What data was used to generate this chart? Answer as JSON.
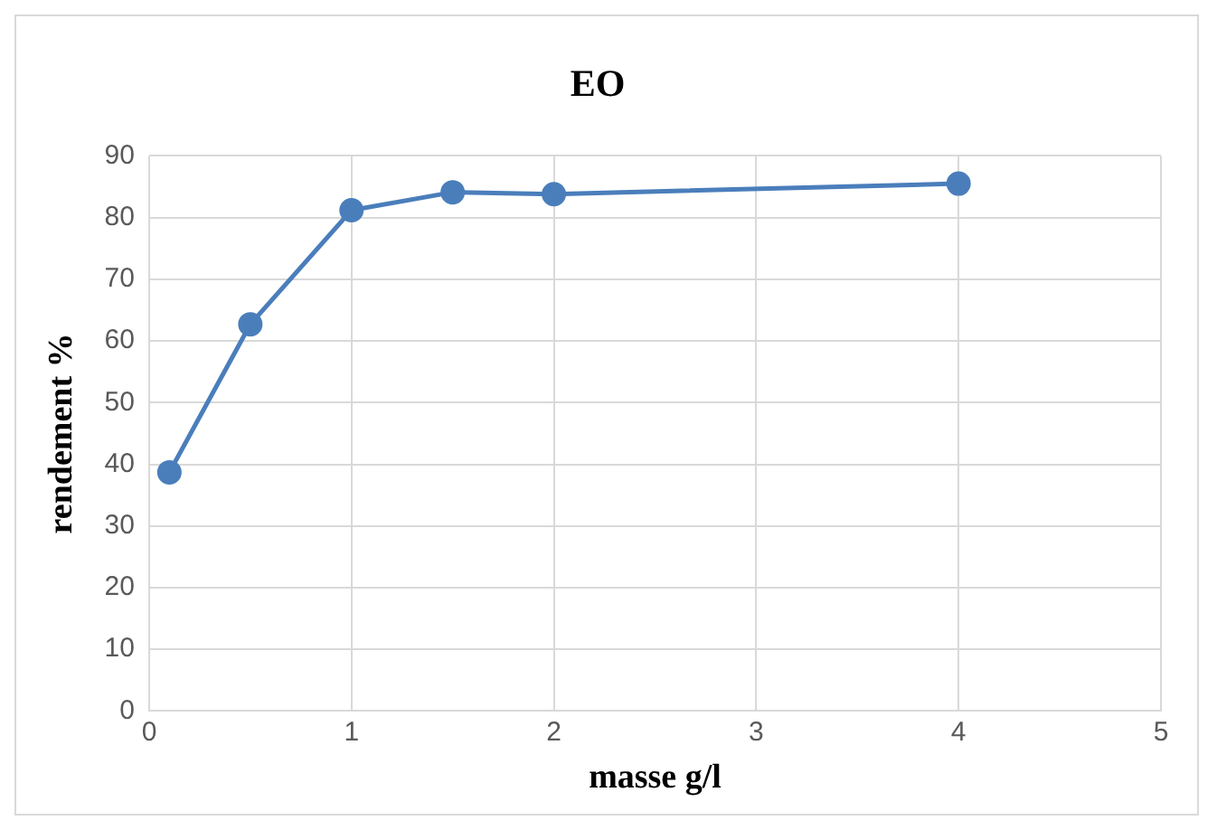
{
  "chart_data": {
    "type": "line",
    "title": "EO",
    "xlabel": "masse g/l",
    "ylabel": "rendement %",
    "x": [
      0.1,
      0.5,
      1,
      1.5,
      2,
      4
    ],
    "series": [
      {
        "color": "#4a7ebb",
        "values": [
          38.7,
          62.7,
          81.2,
          84.1,
          83.8,
          85.5
        ]
      }
    ],
    "xlim": [
      0,
      5
    ],
    "xticks": [
      0,
      1,
      2,
      3,
      4,
      5
    ],
    "ylim": [
      0,
      90
    ],
    "yticks": [
      0,
      10,
      20,
      30,
      40,
      50,
      60,
      70,
      80,
      90
    ],
    "grid": true,
    "legend": false,
    "marker": "circle",
    "line_style": "solid"
  }
}
